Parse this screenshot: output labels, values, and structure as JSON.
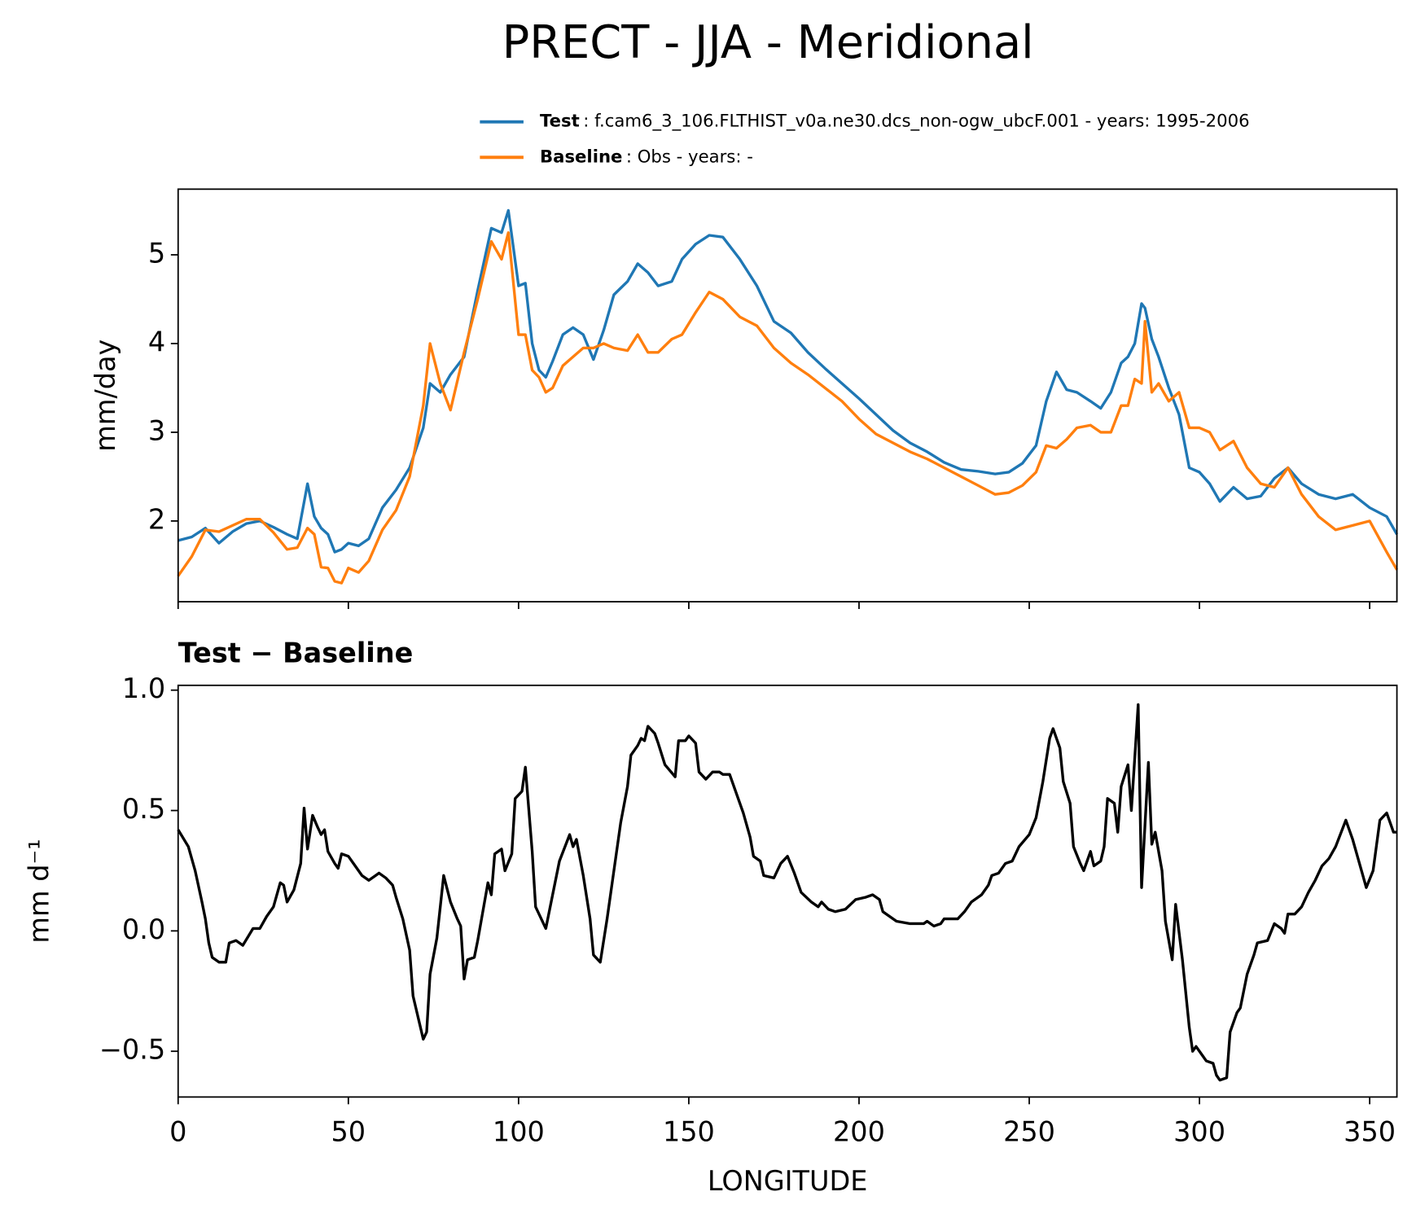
{
  "chart_data": [
    {
      "type": "line",
      "title": "PRECT - JJA - Meridional",
      "ylabel": "mm/day",
      "x": [
        0,
        4,
        8,
        12,
        16,
        20,
        24,
        28,
        32,
        35,
        38,
        40,
        42,
        44,
        46,
        48,
        50,
        53,
        56,
        60,
        64,
        68,
        72,
        74,
        77,
        80,
        84,
        88,
        92,
        95,
        97,
        100,
        102,
        104,
        106,
        108,
        110,
        113,
        116,
        119,
        122,
        125,
        128,
        132,
        135,
        138,
        141,
        145,
        148,
        152,
        156,
        160,
        165,
        170,
        175,
        180,
        185,
        190,
        195,
        200,
        205,
        210,
        215,
        220,
        225,
        230,
        235,
        240,
        244,
        248,
        252,
        255,
        258,
        261,
        264,
        268,
        271,
        274,
        277,
        279,
        281,
        283,
        284,
        286,
        288,
        291,
        294,
        297,
        300,
        303,
        306,
        310,
        314,
        318,
        322,
        326,
        330,
        335,
        340,
        345,
        350,
        355,
        358
      ],
      "series": [
        {
          "name": "Test",
          "label_detail": ": f.cam6_3_106.FLTHIST_v0a.ne30.dcs_non-ogw_ubcF.001 - years: 1995-2006",
          "color": "#1f77b4",
          "values": [
            1.78,
            1.82,
            1.92,
            1.75,
            1.88,
            1.97,
            2.0,
            1.93,
            1.85,
            1.8,
            2.42,
            2.05,
            1.92,
            1.85,
            1.65,
            1.68,
            1.75,
            1.72,
            1.8,
            2.15,
            2.35,
            2.6,
            3.05,
            3.55,
            3.45,
            3.65,
            3.85,
            4.6,
            5.3,
            5.25,
            5.5,
            4.65,
            4.68,
            4.0,
            3.7,
            3.62,
            3.8,
            4.1,
            4.18,
            4.1,
            3.82,
            4.15,
            4.55,
            4.7,
            4.9,
            4.8,
            4.65,
            4.7,
            4.95,
            5.12,
            5.22,
            5.2,
            4.95,
            4.65,
            4.25,
            4.12,
            3.9,
            3.72,
            3.55,
            3.38,
            3.2,
            3.02,
            2.88,
            2.78,
            2.66,
            2.58,
            2.56,
            2.53,
            2.55,
            2.65,
            2.85,
            3.35,
            3.68,
            3.48,
            3.45,
            3.35,
            3.27,
            3.45,
            3.78,
            3.85,
            4.0,
            4.45,
            4.4,
            4.05,
            3.85,
            3.5,
            3.2,
            2.6,
            2.55,
            2.42,
            2.22,
            2.38,
            2.25,
            2.28,
            2.48,
            2.6,
            2.42,
            2.3,
            2.25,
            2.3,
            2.15,
            2.05,
            1.85
          ]
        },
        {
          "name": "Baseline",
          "label_detail": ": Obs - years: -",
          "color": "#ff7f0e",
          "values": [
            1.38,
            1.6,
            1.9,
            1.88,
            1.95,
            2.02,
            2.02,
            1.87,
            1.68,
            1.7,
            1.92,
            1.85,
            1.48,
            1.47,
            1.32,
            1.3,
            1.47,
            1.42,
            1.55,
            1.9,
            2.12,
            2.5,
            3.3,
            4.0,
            3.55,
            3.25,
            3.9,
            4.5,
            5.15,
            4.95,
            5.25,
            4.1,
            4.1,
            3.7,
            3.62,
            3.45,
            3.5,
            3.75,
            3.85,
            3.95,
            3.95,
            4.0,
            3.95,
            3.92,
            4.1,
            3.9,
            3.9,
            4.05,
            4.1,
            4.35,
            4.58,
            4.5,
            4.3,
            4.2,
            3.95,
            3.78,
            3.65,
            3.5,
            3.35,
            3.15,
            2.98,
            2.88,
            2.78,
            2.7,
            2.6,
            2.5,
            2.4,
            2.3,
            2.32,
            2.4,
            2.55,
            2.85,
            2.82,
            2.92,
            3.05,
            3.08,
            3.0,
            3.0,
            3.3,
            3.3,
            3.6,
            3.55,
            4.25,
            3.45,
            3.55,
            3.35,
            3.45,
            3.05,
            3.05,
            3.0,
            2.8,
            2.9,
            2.6,
            2.42,
            2.38,
            2.6,
            2.3,
            2.05,
            1.9,
            1.95,
            2.0,
            1.65,
            1.45
          ]
        }
      ],
      "xlim": [
        0,
        358
      ],
      "xticks": [
        0,
        50,
        100,
        150,
        200,
        250,
        300,
        350
      ],
      "ylim": [
        1.09,
        5.74
      ],
      "yticks": [
        2,
        3,
        4,
        5
      ],
      "grid": false
    },
    {
      "type": "line",
      "title": "Test − Baseline",
      "ylabel": "mm d⁻¹",
      "xlabel": "LONGITUDE",
      "x": [
        0,
        3,
        5,
        7,
        8,
        9,
        10,
        12,
        14,
        15,
        17,
        19,
        22,
        24,
        26,
        28,
        30,
        31,
        32,
        34,
        36,
        37,
        38,
        39.5,
        41,
        42,
        43,
        44,
        46,
        47,
        48,
        50,
        52,
        54,
        56,
        58,
        59,
        61,
        63,
        64,
        66,
        68,
        69,
        72,
        73,
        74,
        76,
        78,
        80,
        82,
        83,
        84,
        85,
        87,
        88,
        90,
        91,
        92,
        93,
        95,
        96,
        98,
        99,
        101,
        102,
        104,
        105,
        108,
        110,
        112,
        115,
        116,
        117,
        119,
        121,
        122,
        124,
        126,
        128,
        130,
        132,
        133,
        135,
        136,
        137,
        138,
        140,
        141,
        143,
        146,
        147,
        149,
        150,
        152,
        153,
        155,
        157,
        159,
        160,
        162,
        164,
        166,
        168,
        169,
        171,
        172,
        175,
        177,
        179,
        181,
        183,
        186,
        188,
        189,
        191,
        193,
        196,
        199,
        202,
        204,
        206,
        207,
        209,
        211,
        215,
        219,
        220,
        222,
        224,
        225,
        229,
        231,
        233,
        236,
        238,
        239,
        241,
        243,
        245,
        247,
        250,
        252,
        254,
        256,
        257,
        259,
        260,
        262,
        263,
        265,
        266,
        268,
        269,
        271,
        272,
        273,
        275,
        276,
        277,
        279,
        280,
        282,
        283,
        285,
        286,
        287,
        289,
        290,
        292,
        293,
        295,
        297,
        298,
        299,
        301,
        302,
        304,
        305,
        306,
        308,
        309,
        311,
        312,
        314,
        316,
        317,
        320,
        322,
        324,
        325,
        326,
        328,
        330,
        332,
        334,
        336,
        338,
        340,
        343,
        345,
        347,
        349,
        351,
        353,
        355,
        357,
        358
      ],
      "series": [
        {
          "color": "#000000",
          "values": [
            0.42,
            0.35,
            0.25,
            0.12,
            0.05,
            -0.05,
            -0.11,
            -0.13,
            -0.13,
            -0.05,
            -0.04,
            -0.06,
            0.01,
            0.01,
            0.06,
            0.1,
            0.2,
            0.19,
            0.12,
            0.17,
            0.28,
            0.51,
            0.34,
            0.48,
            0.43,
            0.4,
            0.42,
            0.33,
            0.28,
            0.26,
            0.32,
            0.31,
            0.27,
            0.23,
            0.21,
            0.23,
            0.24,
            0.22,
            0.19,
            0.14,
            0.05,
            -0.08,
            -0.27,
            -0.45,
            -0.42,
            -0.18,
            -0.03,
            0.23,
            0.12,
            0.05,
            0.02,
            -0.2,
            -0.12,
            -0.11,
            -0.04,
            0.12,
            0.2,
            0.15,
            0.32,
            0.34,
            0.25,
            0.32,
            0.55,
            0.58,
            0.68,
            0.33,
            0.1,
            0.01,
            0.15,
            0.29,
            0.4,
            0.35,
            0.38,
            0.23,
            0.05,
            -0.1,
            -0.13,
            0.05,
            0.25,
            0.45,
            0.6,
            0.73,
            0.77,
            0.8,
            0.79,
            0.85,
            0.82,
            0.78,
            0.69,
            0.64,
            0.79,
            0.79,
            0.81,
            0.78,
            0.66,
            0.63,
            0.66,
            0.66,
            0.65,
            0.65,
            0.57,
            0.49,
            0.39,
            0.31,
            0.29,
            0.23,
            0.22,
            0.28,
            0.31,
            0.24,
            0.16,
            0.12,
            0.1,
            0.12,
            0.09,
            0.08,
            0.09,
            0.13,
            0.14,
            0.15,
            0.13,
            0.08,
            0.06,
            0.04,
            0.03,
            0.03,
            0.04,
            0.02,
            0.03,
            0.05,
            0.05,
            0.08,
            0.12,
            0.15,
            0.19,
            0.23,
            0.24,
            0.28,
            0.29,
            0.35,
            0.4,
            0.47,
            0.62,
            0.8,
            0.84,
            0.76,
            0.62,
            0.53,
            0.35,
            0.28,
            0.25,
            0.33,
            0.27,
            0.29,
            0.35,
            0.55,
            0.53,
            0.41,
            0.6,
            0.69,
            0.5,
            0.94,
            0.18,
            0.7,
            0.36,
            0.41,
            0.25,
            0.04,
            -0.12,
            0.11,
            -0.12,
            -0.4,
            -0.5,
            -0.48,
            -0.52,
            -0.54,
            -0.55,
            -0.6,
            -0.62,
            -0.61,
            -0.42,
            -0.34,
            -0.32,
            -0.18,
            -0.1,
            -0.05,
            -0.04,
            0.03,
            0.01,
            -0.01,
            0.07,
            0.07,
            0.1,
            0.16,
            0.21,
            0.27,
            0.3,
            0.35,
            0.46,
            0.38,
            0.28,
            0.18,
            0.25,
            0.46,
            0.49,
            0.41,
            0.41
          ]
        }
      ],
      "xlim": [
        0,
        358
      ],
      "xticks": [
        0,
        50,
        100,
        150,
        200,
        250,
        300,
        350
      ],
      "ylim": [
        -0.69,
        1.02
      ],
      "yticks": [
        {
          "value": -0.5,
          "label": "−0.5"
        },
        {
          "value": 0,
          "label": "0.0"
        },
        0.5,
        {
          "value": 1,
          "label": "1.0"
        }
      ],
      "grid": false
    }
  ]
}
